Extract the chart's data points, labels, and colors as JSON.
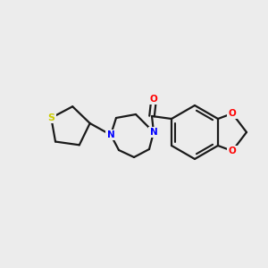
{
  "background_color": "#ececec",
  "atom_colors": {
    "N": "#0000ff",
    "O": "#ff0000",
    "S": "#cccc00",
    "C": "#000000"
  },
  "line_color": "#1a1a1a",
  "line_width": 1.6,
  "font_size_atom": 7.5,
  "fig_width": 3.0,
  "fig_height": 3.0,
  "dpi": 100,
  "xlim": [
    0,
    300
  ],
  "ylim": [
    0,
    300
  ]
}
